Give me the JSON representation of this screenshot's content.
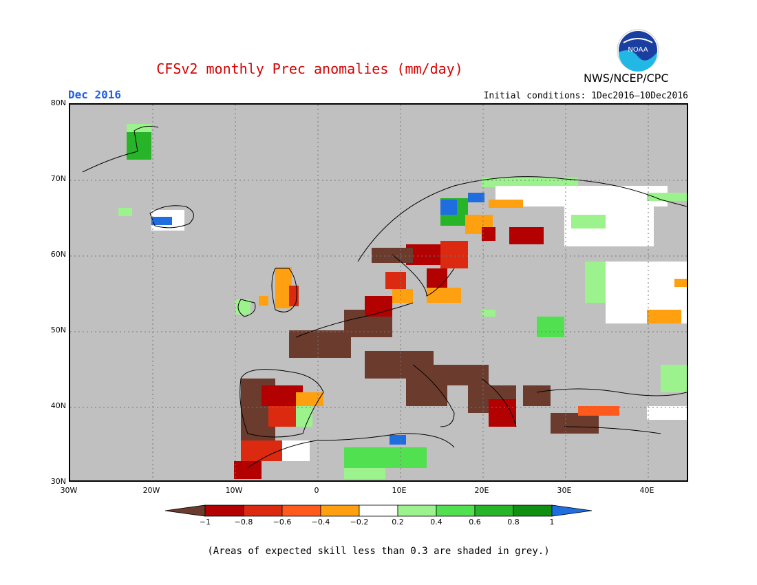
{
  "header": {
    "title": "CFSv2 monthly Prec anomalies (mm/day)",
    "month": "Dec 2016",
    "initial_conditions": "Initial conditions: 1Dec2016–10Dec2016",
    "agency": "NWS/NCEP/CPC",
    "logo_text": "NOAA"
  },
  "map": {
    "lat_labels": [
      "80N",
      "70N",
      "60N",
      "50N",
      "40N",
      "30N"
    ],
    "lon_labels": [
      "30W",
      "20W",
      "10W",
      "0",
      "10E",
      "20E",
      "30E",
      "40E"
    ],
    "extent": {
      "lon": [
        -30,
        45
      ],
      "lat": [
        30,
        80
      ]
    },
    "grid": "dotted",
    "colors": {
      "land_boundary": "#000000",
      "background": "#c0c0c0"
    }
  },
  "colorbar": {
    "ticks": [
      "−1",
      "−0.8",
      "−0.6",
      "−0.4",
      "−0.2",
      "0.2",
      "0.4",
      "0.6",
      "0.8",
      "1"
    ],
    "colors": [
      "#6b3b2e",
      "#b30000",
      "#dc2a10",
      "#ff5a1e",
      "#ffa010",
      "#ffffff",
      "#9cf28c",
      "#50e050",
      "#28b428",
      "#109010",
      "#1f6ee0"
    ]
  },
  "footnote": "(Areas of expected skill less than 0.3 are shaded in grey.)"
}
